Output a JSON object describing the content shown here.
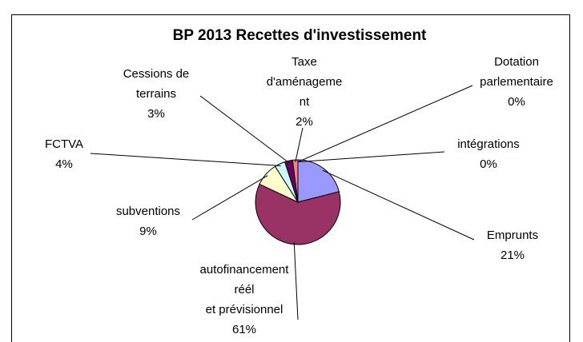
{
  "chart_data": {
    "type": "pie",
    "title": "BP 2013 Recettes d'investissement",
    "categories": [
      "Emprunts",
      "autofinancement\nréél\net prévisionnel",
      "subventions",
      "FCTVA",
      "Cessions de\nterrains",
      "Taxe\nd'aménageme\nnt",
      "Dotation\nparlementaire",
      "intégrations"
    ],
    "values": [
      21,
      61,
      9,
      4,
      3,
      2,
      0,
      0
    ],
    "value_labels": [
      "21%",
      "61%",
      "9%",
      "4%",
      "3%",
      "2%",
      "0%",
      "0%"
    ],
    "colors": [
      "#9999ff",
      "#993366",
      "#ffffcc",
      "#ccffff",
      "#660066",
      "#ff8080",
      "#0066cc",
      "#ccccff"
    ]
  }
}
